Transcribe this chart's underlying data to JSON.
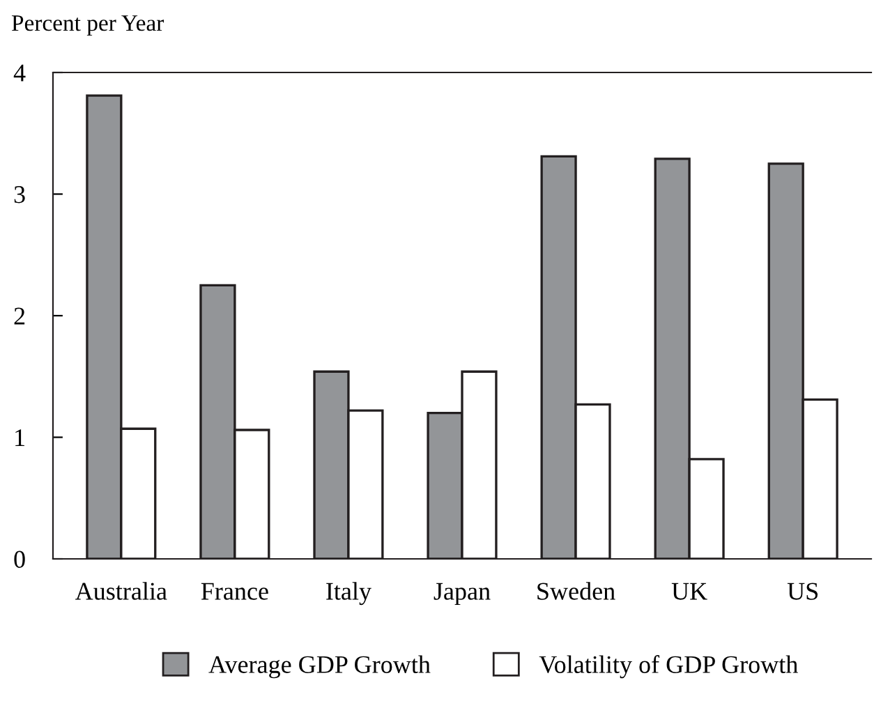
{
  "chart_data": {
    "type": "bar",
    "ylabel": "Percent per Year",
    "categories": [
      "Australia",
      "France",
      "Italy",
      "Japan",
      "Sweden",
      "UK",
      "US"
    ],
    "series": [
      {
        "name": "Average GDP Growth",
        "color": "#939598",
        "values": [
          3.81,
          2.25,
          1.54,
          1.2,
          3.31,
          3.29,
          3.25
        ]
      },
      {
        "name": "Volatility of GDP Growth",
        "color": "#ffffff",
        "values": [
          1.07,
          1.06,
          1.22,
          1.54,
          1.27,
          0.82,
          1.31
        ]
      }
    ],
    "ylim": [
      0,
      4
    ],
    "yticks": [
      0,
      1,
      2,
      3,
      4
    ],
    "grid": false,
    "legend": "bottom"
  }
}
